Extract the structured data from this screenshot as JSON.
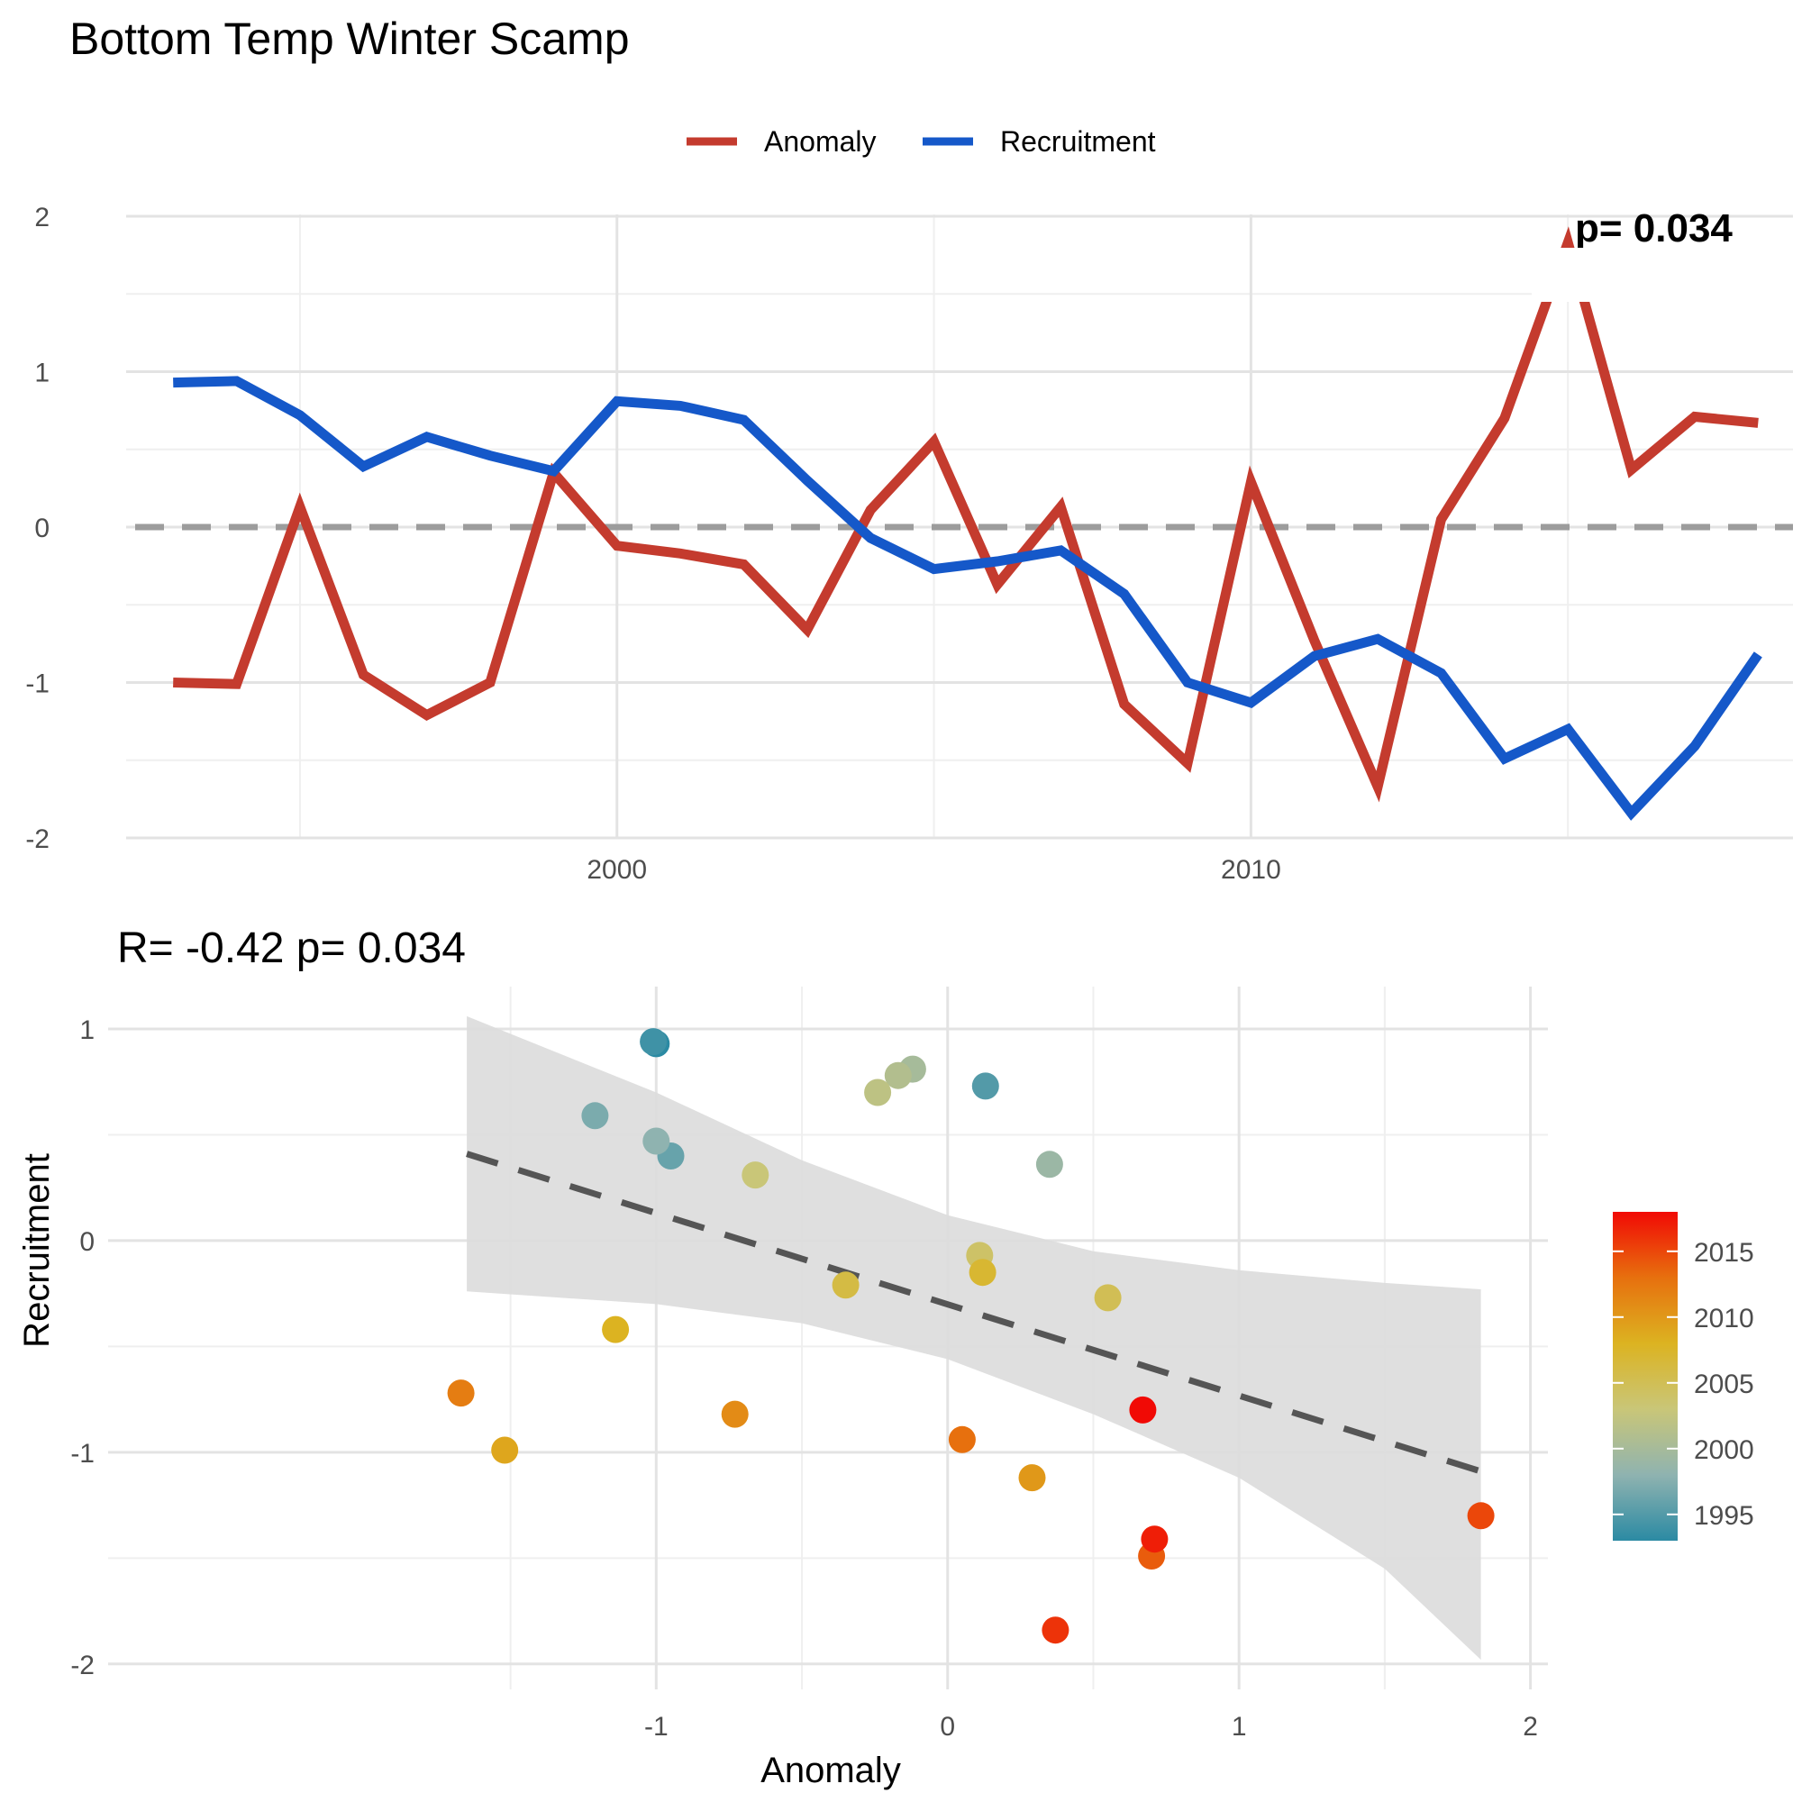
{
  "title": "Bottom Temp Winter Scamp",
  "colors": {
    "anomaly": "#c43b2e",
    "recruitment": "#1558c9",
    "zero_line": "#9c9c9c",
    "fit_line": "#555555",
    "ribbon": "#dcdcdc",
    "grid_major": "#e3e3e3",
    "grid_minor": "#efefef"
  },
  "chart_data": [
    {
      "type": "line",
      "title": "",
      "xlabel": "",
      "ylabel": "",
      "xlim": [
        1992.4,
        2018.55
      ],
      "ylim": [
        -2,
        2
      ],
      "x_ticks": [
        2000,
        2010
      ],
      "y_ticks": [
        2,
        1,
        0,
        -1,
        -2
      ],
      "hline": 0,
      "legend_position": "top",
      "corner_label": "p= 0.034",
      "x": [
        1993,
        1994,
        1995,
        1996,
        1997,
        1998,
        1999,
        2000,
        2001,
        2002,
        2003,
        2004,
        2005,
        2006,
        2007,
        2008,
        2009,
        2010,
        2011,
        2012,
        2013,
        2014,
        2015,
        2016,
        2017,
        2018
      ],
      "series": [
        {
          "name": "Anomaly",
          "color": "#c43b2e",
          "values": [
            -1.0,
            -1.01,
            0.13,
            -0.95,
            -1.21,
            -1.0,
            0.35,
            -0.12,
            -0.17,
            -0.24,
            -0.66,
            0.11,
            0.55,
            -0.37,
            0.13,
            -1.14,
            -1.52,
            0.29,
            -0.73,
            -1.67,
            0.05,
            0.7,
            1.83,
            0.37,
            0.71,
            0.67
          ]
        },
        {
          "name": "Recruitment",
          "color": "#1558c9",
          "values": [
            0.93,
            0.94,
            0.72,
            0.39,
            0.58,
            0.46,
            0.36,
            0.81,
            0.78,
            0.69,
            0.3,
            -0.07,
            -0.27,
            -0.22,
            -0.15,
            -0.43,
            -1.0,
            -1.13,
            -0.83,
            -0.72,
            -0.94,
            -1.49,
            -1.3,
            -1.84,
            -1.41,
            -0.82
          ]
        }
      ]
    },
    {
      "type": "scatter",
      "title": "R= -0.42  p= 0.034",
      "xlabel": "Anomaly",
      "ylabel": "Recruitment",
      "xlim": [
        -2.85,
        2.06
      ],
      "ylim": [
        -2.12,
        1.2
      ],
      "x_ticks": [
        -1,
        0,
        1,
        2
      ],
      "y_ticks": [
        1,
        0,
        -1,
        -2
      ],
      "fit": {
        "x0": -1.65,
        "y0": 0.41,
        "x1": 1.83,
        "y1": -1.09,
        "style": "dashed"
      },
      "confidence_band": [
        {
          "x": -1.65,
          "lower": -0.24,
          "upper": 1.06
        },
        {
          "x": -1.0,
          "lower": -0.3,
          "upper": 0.7
        },
        {
          "x": -0.5,
          "lower": -0.39,
          "upper": 0.38
        },
        {
          "x": 0.0,
          "lower": -0.56,
          "upper": 0.12
        },
        {
          "x": 0.5,
          "lower": -0.82,
          "upper": -0.05
        },
        {
          "x": 1.0,
          "lower": -1.12,
          "upper": -0.14
        },
        {
          "x": 1.5,
          "lower": -1.55,
          "upper": -0.2
        },
        {
          "x": 1.83,
          "lower": -1.98,
          "upper": -0.23
        }
      ],
      "colorbar": {
        "label": "",
        "ticks": [
          2015,
          2010,
          2005,
          2000,
          1995
        ],
        "min": 1993,
        "max": 2018,
        "colors": [
          "#2b8aa3",
          "#8fb3b0",
          "#c9c678",
          "#dcb321",
          "#e7700e",
          "#f10a05"
        ]
      },
      "points": [
        {
          "year": 1993,
          "x": -1.0,
          "y": 0.93
        },
        {
          "year": 1994,
          "x": -1.01,
          "y": 0.94
        },
        {
          "year": 1995,
          "x": 0.13,
          "y": 0.73
        },
        {
          "year": 1996,
          "x": -0.95,
          "y": 0.4
        },
        {
          "year": 1997,
          "x": -1.21,
          "y": 0.59
        },
        {
          "year": 1998,
          "x": -1.0,
          "y": 0.47
        },
        {
          "year": 1999,
          "x": 0.35,
          "y": 0.36
        },
        {
          "year": 2000,
          "x": -0.12,
          "y": 0.81
        },
        {
          "year": 2001,
          "x": -0.17,
          "y": 0.78
        },
        {
          "year": 2002,
          "x": -0.24,
          "y": 0.7
        },
        {
          "year": 2003,
          "x": -0.66,
          "y": 0.31
        },
        {
          "year": 2004,
          "x": 0.11,
          "y": -0.07
        },
        {
          "year": 2005,
          "x": 0.55,
          "y": -0.27
        },
        {
          "year": 2006,
          "x": -0.35,
          "y": -0.21
        },
        {
          "year": 2007,
          "x": 0.12,
          "y": -0.15
        },
        {
          "year": 2008,
          "x": -1.14,
          "y": -0.42
        },
        {
          "year": 2009,
          "x": -1.52,
          "y": -0.99
        },
        {
          "year": 2010,
          "x": 0.29,
          "y": -1.12
        },
        {
          "year": 2011,
          "x": -0.73,
          "y": -0.82
        },
        {
          "year": 2012,
          "x": -1.67,
          "y": -0.72
        },
        {
          "year": 2013,
          "x": 0.05,
          "y": -0.94
        },
        {
          "year": 2014,
          "x": 0.7,
          "y": -1.49
        },
        {
          "year": 2015,
          "x": 1.83,
          "y": -1.3
        },
        {
          "year": 2016,
          "x": 0.37,
          "y": -1.84
        },
        {
          "year": 2017,
          "x": 0.71,
          "y": -1.41
        },
        {
          "year": 2018,
          "x": 0.67,
          "y": -0.8
        }
      ]
    }
  ]
}
